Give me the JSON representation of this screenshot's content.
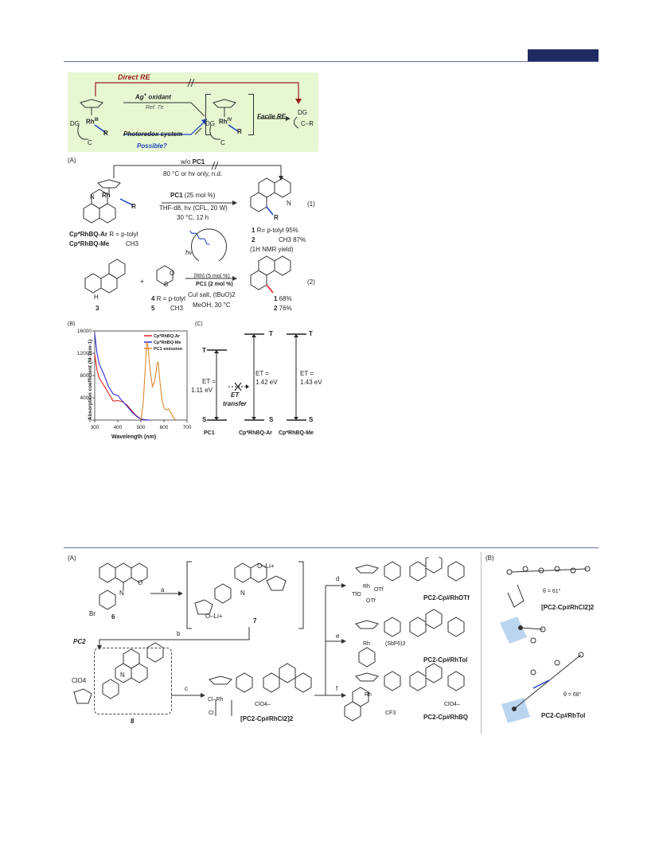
{
  "header": {},
  "scheme1": {
    "direct_re": "Direct RE",
    "ag_oxidant": "Ag",
    "ag_sup": "+",
    "ag_tail": " oxidant",
    "ref": "Ref. 7e",
    "photoredox": "Photoredox system",
    "possible": "Possible?",
    "facile_re": "Facile RE",
    "rh3": "Rh",
    "rh3_sup": "III",
    "rh4": "Rh",
    "rh4_sup": "IV",
    "dg": "DG",
    "r": "R",
    "c": "C",
    "c_r": "C",
    "dash": "–",
    "r2": "R"
  },
  "schemeA": {
    "label": "(A)",
    "wo": "w/o ",
    "wo_b": "PC1",
    "cond_top": "80 °C or hv only, n.d.",
    "pc1": "PC1",
    "pc1_tail": " (25 mol %)",
    "thf": "THF-d8, hv (CFL, 20 W)",
    "time": "30 °C, 12 h",
    "eq1": "(1)",
    "rh": "Rh",
    "n": "N",
    "r": "R",
    "cp_ar": "Cp*RhBQ-Ar",
    "cp_ar_tail": "  R = p-tolyl",
    "cp_me": "Cp*RhBQ-Me",
    "cp_me_tail": "CH3",
    "prod1": "1",
    "prod1_tail": "  R=  p-tolyl  95%",
    "prod2": "2",
    "prod2_tail": "CH3  87%",
    "nmr": "(1H NMR yield)",
    "hv": "hv",
    "rh_cat": "[Rh] (5 mol %)",
    "pc1_cat": "PC1 (2 mol %)",
    "cu": "CuI salt, (tBuO)2",
    "meoh": "MeOH, 30 °C",
    "eq2": "(2)",
    "plus": "+",
    "h": "H",
    "b": "B",
    "o": "O",
    "c3": "3",
    "c4": "4",
    "c4_tail": "  R = p-tolyl",
    "c5": "5",
    "c5_tail": "CH3",
    "y1": "1",
    "y1_tail": " 68%",
    "y2": "2",
    "y2_tail": " 76%"
  },
  "panelB": {
    "label": "(B)",
    "ylabel": "Absorption coefficient (M-1cm-1)",
    "xlabel": "Wavelength (nm)"
  },
  "chart_data": {
    "type": "line",
    "xlabel": "Wavelength (nm)",
    "ylabel": "Absorption coefficient (M-1cm-1)",
    "xlim": [
      300,
      700
    ],
    "ylim": [
      0,
      16000
    ],
    "xticks": [
      300,
      400,
      500,
      600,
      700
    ],
    "yticks": [
      0,
      4000,
      8000,
      12000,
      16000
    ],
    "legend": "top-right",
    "series": [
      {
        "name": "Cp*RhBQ-Ar",
        "color": "#e02020",
        "x": [
          300,
          310,
          320,
          340,
          360,
          380,
          400,
          420,
          440,
          460,
          480,
          500,
          520,
          540
        ],
        "y": [
          11800,
          9000,
          7500,
          6200,
          4800,
          3400,
          3500,
          3300,
          2700,
          1700,
          800,
          200,
          50,
          0
        ]
      },
      {
        "name": "Cp*RhBQ-Me",
        "color": "#2b2bd6",
        "x": [
          300,
          310,
          320,
          340,
          360,
          380,
          400,
          420,
          440,
          460,
          480,
          500,
          520,
          540
        ],
        "y": [
          15500,
          12000,
          10000,
          8200,
          6000,
          4700,
          4400,
          3400,
          2500,
          1500,
          700,
          150,
          30,
          0
        ]
      },
      {
        "name": "PC1 emission",
        "color": "#d98a2e",
        "x": [
          500,
          510,
          520,
          525,
          530,
          540,
          550,
          560,
          570,
          575,
          580,
          590,
          600,
          610,
          620,
          630,
          640,
          650
        ],
        "y": [
          0,
          3000,
          10000,
          14000,
          13500,
          9000,
          6000,
          7000,
          10000,
          10500,
          8000,
          4000,
          2200,
          1800,
          2000,
          1300,
          500,
          100
        ]
      }
    ]
  },
  "panelC": {
    "label": "(C)",
    "t": "T",
    "s": "S",
    "et1": "ET =",
    "et1v": "1.11 eV",
    "et2": "ET =",
    "et2v": "1.42 eV",
    "et3": "ET =",
    "et3v": "1.43 eV",
    "transfer_a": "ET",
    "transfer_b": "transfer",
    "pc1": "PC1",
    "ar": "Cp*RhBQ-Ar",
    "me": "Cp*RhBQ-Me"
  },
  "scheme2": {
    "label_a": "(A)",
    "label_b": "(B)",
    "c6": "6",
    "c7": "7",
    "c8": "8",
    "br": "Br",
    "o": "O",
    "n": "N",
    "oli": "O–Li+",
    "oli2": "O–Li+",
    "step_a": "a",
    "step_b": "b",
    "step_c": "c",
    "step_d": "d",
    "step_e": "e",
    "step_f": "f",
    "pc2": "PC2",
    "clo4": "ClO4",
    "clo4b": "ClO4–",
    "clo4c": "ClO4–",
    "rhcl": "Cl–Rh",
    "cl": "Cl",
    "dimer": "[PC2-Cp#RhCl2]2",
    "otf_name": "PC2-Cp#RhOTf",
    "tol_name": "PC2-Cp#RhTol",
    "bq_name": "PC2-Cp#RhBQ",
    "tfo": "TfO",
    "otf": "OTf",
    "otf2": "OTf",
    "rh": "Rh",
    "sbf": "(SbF6)3",
    "cf3": "CF3",
    "crystal1": "[PC2-Cp#RhCl2]2",
    "crystal2": "PC2-Cp#RhTol",
    "theta1": "θ = 61°",
    "theta2": "θ = 68°",
    "plus": "+"
  }
}
